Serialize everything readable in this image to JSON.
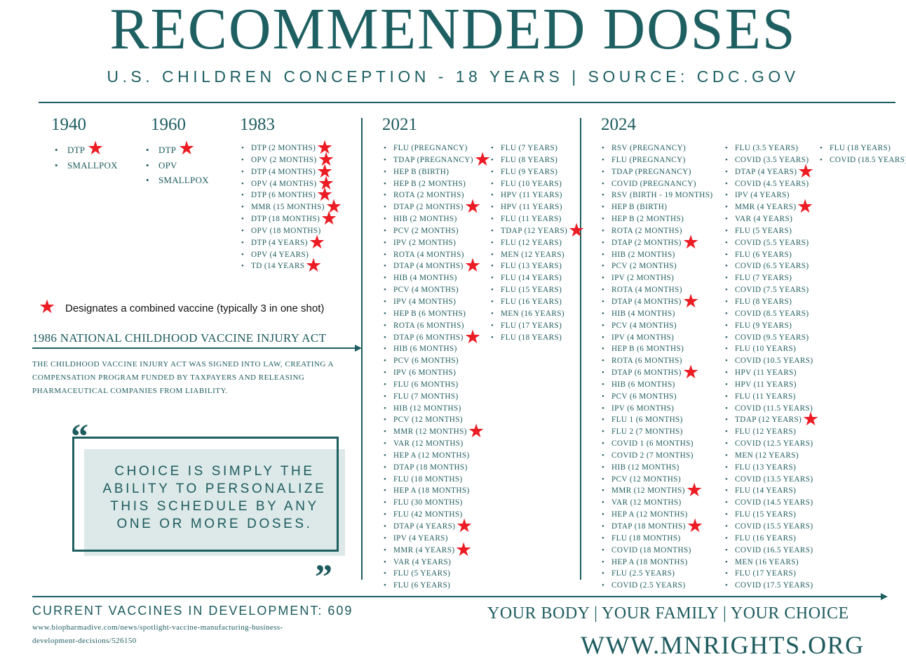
{
  "title": "RECOMMENDED DOSES",
  "subtitle": "U.S. CHILDREN CONCEPTION - 18 YEARS | SOURCE: CDC.GOV",
  "colors": {
    "teal": "#1e5b5e",
    "star": "#ec1c24",
    "quote_bg": "#dce9e8"
  },
  "icons": {
    "star": "star-icon",
    "bullet": "bullet-icon",
    "arrow": "arrow-icon",
    "quote": "quote-mark-icon"
  },
  "years": {
    "y1940": "1940",
    "y1960": "1960",
    "y1983": "1983",
    "y2021": "2021",
    "y2024": "2024"
  },
  "schedules": {
    "s1940": [
      {
        "label": "DTP",
        "combined": true
      },
      {
        "label": "SMALLPOX",
        "combined": false
      }
    ],
    "s1960": [
      {
        "label": "DTP",
        "combined": true
      },
      {
        "label": "OPV",
        "combined": false
      },
      {
        "label": "SMALLPOX",
        "combined": false
      }
    ],
    "s1983": [
      {
        "label": "DTP (2 MONTHS)",
        "combined": true
      },
      {
        "label": "OPV (2 MONTHS)",
        "combined": true
      },
      {
        "label": "DTP (4 MONTHS)",
        "combined": true
      },
      {
        "label": "OPV (4 MONTHS)",
        "combined": true
      },
      {
        "label": "DTP (6 MONTHS)",
        "combined": true
      },
      {
        "label": "MMR (15 MONTHS)",
        "combined": true
      },
      {
        "label": "DTP (18 MONTHS)",
        "combined": true
      },
      {
        "label": "OPV (18 MONTHS)",
        "combined": false
      },
      {
        "label": "DTP (4 YEARS)",
        "combined": true
      },
      {
        "label": "OPV (4 YEARS)",
        "combined": false
      },
      {
        "label": "TD (14 YEARS",
        "combined": true
      }
    ],
    "s2021a": [
      {
        "label": "FLU (PREGNANCY)",
        "combined": false
      },
      {
        "label": "TDAP (PREGNANCY)",
        "combined": true
      },
      {
        "label": "HEP B (BIRTH)",
        "combined": false
      },
      {
        "label": "HEP B (2 MONTHS)",
        "combined": false
      },
      {
        "label": "ROTA (2 MONTHS)",
        "combined": false
      },
      {
        "label": "DTAP (2 MONTHS)",
        "combined": true
      },
      {
        "label": "HIB (2 MONTHS)",
        "combined": false
      },
      {
        "label": "PCV (2 MONTHS)",
        "combined": false
      },
      {
        "label": "IPV (2 MONTHS)",
        "combined": false
      },
      {
        "label": "ROTA (4 MONTHS)",
        "combined": false
      },
      {
        "label": "DTAP (4 MONTHS)",
        "combined": true
      },
      {
        "label": "HIB (4 MONTHS)",
        "combined": false
      },
      {
        "label": "PCV (4 MONTHS)",
        "combined": false
      },
      {
        "label": "IPV (4 MONTHS)",
        "combined": false
      },
      {
        "label": "HEP B (6 MONTHS)",
        "combined": false
      },
      {
        "label": "ROTA (6 MONTHS)",
        "combined": false
      },
      {
        "label": "DTAP (6 MONTHS)",
        "combined": true
      },
      {
        "label": "HIB (6 MONTHS)",
        "combined": false
      },
      {
        "label": "PCV (6 MONTHS)",
        "combined": false
      },
      {
        "label": "IPV (6 MONTHS)",
        "combined": false
      },
      {
        "label": "FLU (6 MONTHS)",
        "combined": false
      },
      {
        "label": "FLU (7 MONTHS)",
        "combined": false
      },
      {
        "label": "HIB (12 MONTHS)",
        "combined": false
      },
      {
        "label": "PCV (12 MONTHS)",
        "combined": false
      },
      {
        "label": "MMR (12 MONTHS)",
        "combined": true
      },
      {
        "label": "VAR (12 MONTHS)",
        "combined": false
      },
      {
        "label": "HEP A (12 MONTHS)",
        "combined": false
      },
      {
        "label": "DTAP (18 MONTHS)",
        "combined": false
      },
      {
        "label": "FLU (18 MONTHS)",
        "combined": false
      },
      {
        "label": "HEP A (18 MONTHS)",
        "combined": false
      },
      {
        "label": "FLU (30 MONTHS)",
        "combined": false
      },
      {
        "label": "FLU (42 MONTHS)",
        "combined": false
      },
      {
        "label": "DTAP (4 YEARS)",
        "combined": true
      },
      {
        "label": "IPV (4 YEARS)",
        "combined": false
      },
      {
        "label": "MMR (4 YEARS)",
        "combined": true
      },
      {
        "label": "VAR (4 YEARS)",
        "combined": false
      },
      {
        "label": "FLU (5 YEARS)",
        "combined": false
      },
      {
        "label": "FLU (6 YEARS)",
        "combined": false
      }
    ],
    "s2021b": [
      {
        "label": "FLU (7 YEARS)",
        "combined": false
      },
      {
        "label": "FLU (8 YEARS)",
        "combined": false
      },
      {
        "label": "FLU (9 YEARS)",
        "combined": false
      },
      {
        "label": "FLU (10 YEARS)",
        "combined": false
      },
      {
        "label": "HPV (11 YEARS)",
        "combined": false
      },
      {
        "label": "HPV (11 YEARS)",
        "combined": false
      },
      {
        "label": "FLU (11 YEARS)",
        "combined": false
      },
      {
        "label": "TDAP (12 YEARS)",
        "combined": true
      },
      {
        "label": "FLU (12 YEARS)",
        "combined": false
      },
      {
        "label": "MEN (12 YEARS)",
        "combined": false
      },
      {
        "label": "FLU (13 YEARS)",
        "combined": false
      },
      {
        "label": "FLU (14 YEARS)",
        "combined": false
      },
      {
        "label": "FLU (15 YEARS)",
        "combined": false
      },
      {
        "label": "FLU (16 YEARS)",
        "combined": false
      },
      {
        "label": "MEN (16 YEARS)",
        "combined": false
      },
      {
        "label": "FLU (17 YEARS)",
        "combined": false
      },
      {
        "label": "FLU (18 YEARS)",
        "combined": false
      }
    ],
    "s2024a": [
      {
        "label": "RSV (PREGNANCY)",
        "combined": false
      },
      {
        "label": "FLU (PREGNANCY)",
        "combined": false
      },
      {
        "label": "TDAP (PREGNANCY)",
        "combined": false
      },
      {
        "label": "COVID (PREGNANCY)",
        "combined": false
      },
      {
        "label": "RSV (BIRTH - 19 MONTHS)",
        "combined": false
      },
      {
        "label": "HEP B (BIRTH)",
        "combined": false
      },
      {
        "label": "HEP B (2 MONTHS)",
        "combined": false
      },
      {
        "label": "ROTA (2 MONTHS)",
        "combined": false
      },
      {
        "label": "DTAP (2 MONTHS)",
        "combined": true
      },
      {
        "label": "HIB (2 MONTHS)",
        "combined": false
      },
      {
        "label": "PCV (2 MONTHS)",
        "combined": false
      },
      {
        "label": "IPV (2 MONTHS)",
        "combined": false
      },
      {
        "label": "ROTA (4 MONTHS)",
        "combined": false
      },
      {
        "label": "DTAP (4 MONTHS)",
        "combined": true
      },
      {
        "label": "HIB (4 MONTHS)",
        "combined": false
      },
      {
        "label": "PCV (4 MONTHS)",
        "combined": false
      },
      {
        "label": "IPV (4 MONTHS)",
        "combined": false
      },
      {
        "label": "HEP B (6 MONTHS)",
        "combined": false
      },
      {
        "label": "ROTA (6 MONTHS)",
        "combined": false
      },
      {
        "label": "DTAP (6 MONTHS)",
        "combined": true
      },
      {
        "label": "HIB (6 MONTHS)",
        "combined": false
      },
      {
        "label": "PCV (6 MONTHS)",
        "combined": false
      },
      {
        "label": "IPV (6 MONTHS)",
        "combined": false
      },
      {
        "label": "FLU 1 (6 MONTHS)",
        "combined": false
      },
      {
        "label": "FLU 2 (7 MONTHS)",
        "combined": false
      },
      {
        "label": "COVID 1 (6 MONTHS)",
        "combined": false
      },
      {
        "label": "COVID 2 (7 MONTHS)",
        "combined": false
      },
      {
        "label": "HIB (12 MONTHS)",
        "combined": false
      },
      {
        "label": "PCV (12 MONTHS)",
        "combined": false
      },
      {
        "label": "MMR (12 MONTHS)",
        "combined": true
      },
      {
        "label": "VAR (12 MONTHS)",
        "combined": false
      },
      {
        "label": "HEP A (12 MONTHS)",
        "combined": false
      },
      {
        "label": "DTAP (18 MONTHS)",
        "combined": true
      },
      {
        "label": "FLU (18 MONTHS)",
        "combined": false
      },
      {
        "label": "COVID (18 MONTHS)",
        "combined": false
      },
      {
        "label": "HEP A (18 MONTHS)",
        "combined": false
      },
      {
        "label": "FLU (2.5 YEARS)",
        "combined": false
      },
      {
        "label": "COVID (2.5 YEARS)",
        "combined": false
      }
    ],
    "s2024b": [
      {
        "label": "FLU (3.5 YEARS)",
        "combined": false
      },
      {
        "label": "COVID (3.5 YEARS)",
        "combined": false
      },
      {
        "label": "DTAP (4 YEARS)",
        "combined": true
      },
      {
        "label": "COVID (4.5 YEARS)",
        "combined": false
      },
      {
        "label": "IPV (4 YEARS)",
        "combined": false
      },
      {
        "label": "MMR (4 YEARS)",
        "combined": true
      },
      {
        "label": "VAR (4 YEARS)",
        "combined": false
      },
      {
        "label": "FLU (5 YEARS)",
        "combined": false
      },
      {
        "label": "COVID (5.5 YEARS)",
        "combined": false
      },
      {
        "label": "FLU (6 YEARS)",
        "combined": false
      },
      {
        "label": "COVID (6.5 YEARS)",
        "combined": false
      },
      {
        "label": "FLU (7 YEARS)",
        "combined": false
      },
      {
        "label": "COVID (7.5 YEARS)",
        "combined": false
      },
      {
        "label": "FLU (8 YEARS)",
        "combined": false
      },
      {
        "label": "COVID (8.5 YEARS)",
        "combined": false
      },
      {
        "label": "FLU (9 YEARS)",
        "combined": false
      },
      {
        "label": "COVID (9.5 YEARS)",
        "combined": false
      },
      {
        "label": "FLU (10 YEARS)",
        "combined": false
      },
      {
        "label": "COVID (10.5 YEARS)",
        "combined": false
      },
      {
        "label": "HPV (11 YEARS)",
        "combined": false
      },
      {
        "label": "HPV (11 YEARS)",
        "combined": false
      },
      {
        "label": "FLU (11 YEARS)",
        "combined": false
      },
      {
        "label": "COVID (11.5 YEARS)",
        "combined": false
      },
      {
        "label": "TDAP (12 YEARS)",
        "combined": true
      },
      {
        "label": "FLU (12 YEARS)",
        "combined": false
      },
      {
        "label": "COVID (12.5 YEARS)",
        "combined": false
      },
      {
        "label": "MEN (12 YEARS)",
        "combined": false
      },
      {
        "label": "FLU (13 YEARS)",
        "combined": false
      },
      {
        "label": "COVID (13.5 YEARS)",
        "combined": false
      },
      {
        "label": "FLU (14 YEARS)",
        "combined": false
      },
      {
        "label": "COVID (14.5 YEARS)",
        "combined": false
      },
      {
        "label": "FLU (15 YEARS)",
        "combined": false
      },
      {
        "label": "COVID (15.5 YEARS)",
        "combined": false
      },
      {
        "label": "FLU (16 YEARS)",
        "combined": false
      },
      {
        "label": "COVID (16.5 YEARS)",
        "combined": false
      },
      {
        "label": "MEN (16 YEARS)",
        "combined": false
      },
      {
        "label": "FLU (17 YEARS)",
        "combined": false
      },
      {
        "label": "COVID (17.5 YEARS)",
        "combined": false
      }
    ],
    "s2024c": [
      {
        "label": "FLU (18 YEARS)",
        "combined": false
      },
      {
        "label": "COVID (18.5 YEARS)",
        "combined": false
      }
    ]
  },
  "legend": {
    "star": "★",
    "text": "Designates a combined vaccine (typically 3 in one shot)"
  },
  "act": {
    "title": "1986 NATIONAL CHILDHOOD VACCINE INJURY ACT",
    "description": "THE CHILDHOOD VACCINE INJURY ACT WAS SIGNED INTO LAW, CREATING A COMPENSATION PROGRAM FUNDED BY TAXPAYERS AND RELEASING PHARMACEUTICAL COMPANIES FROM LIABILITY."
  },
  "quote": {
    "open": "“",
    "close": "”",
    "line1": "CHOICE IS SIMPLY THE",
    "line2": "ABILITY TO PERSONALIZE",
    "line3": "THIS SCHEDULE BY ANY",
    "line4": "ONE OR MORE DOSES."
  },
  "footer": {
    "development": "CURRENT VACCINES IN DEVELOPMENT: 609",
    "url_line1": "www.biopharmadive.com/news/spotlight-vaccine-manufacturing-business-",
    "url_line2": "development-decisions/526150",
    "slogan": "YOUR BODY | YOUR FAMILY | YOUR CHOICE",
    "website": "WWW.MNRIGHTS.ORG"
  }
}
